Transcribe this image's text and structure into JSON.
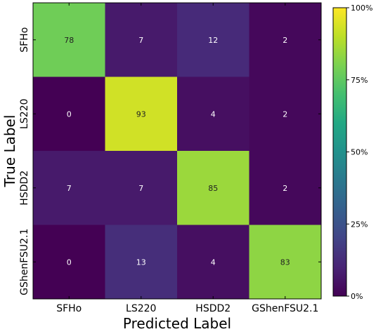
{
  "chart_data": {
    "type": "heatmap",
    "title": "",
    "xlabel": "Predicted Label",
    "ylabel": "True Label",
    "x_categories": [
      "SFHo",
      "LS220",
      "HSDD2",
      "GShenFSU2.1"
    ],
    "y_categories": [
      "SFHo",
      "LS220",
      "HSDD2",
      "GShenFSU2.1"
    ],
    "values": [
      [
        78,
        7,
        12,
        2
      ],
      [
        0,
        93,
        4,
        2
      ],
      [
        7,
        7,
        85,
        2
      ],
      [
        0,
        13,
        4,
        83
      ]
    ],
    "value_range": [
      0,
      100
    ],
    "colormap": "viridis",
    "colorbar": {
      "ticks": [
        0,
        25,
        50,
        75,
        100
      ],
      "tick_labels": [
        "0%",
        "25%",
        "50%",
        "75%",
        "100%"
      ]
    },
    "grid": false
  }
}
